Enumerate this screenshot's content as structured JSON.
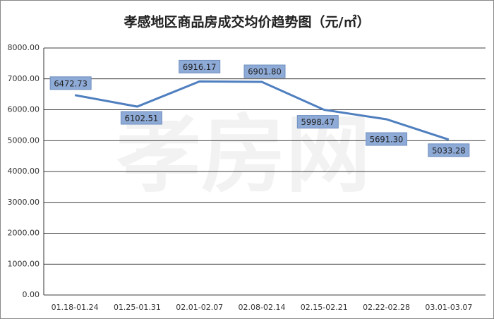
{
  "chart_data": {
    "type": "line",
    "title": "孝感地区商品房成交均价趋势图（元/㎡）",
    "watermark": "孝房网",
    "categories": [
      "01.18-01.24",
      "01.25-01.31",
      "02.01-02.07",
      "02.08-02.14",
      "02.15-02.21",
      "02.22-02.28",
      "03.01-03.07"
    ],
    "series": [
      {
        "name": "成交均价",
        "color": "#4f7fbf",
        "values": [
          6472.73,
          6102.51,
          6916.17,
          6901.8,
          5998.47,
          5691.3,
          5033.28
        ],
        "value_labels": [
          "6472.73",
          "6102.51",
          "6916.17",
          "6901.80",
          "5998.47",
          "5691.30",
          "5033.28"
        ]
      }
    ],
    "ylim": [
      0,
      8000
    ],
    "yticks": [
      {
        "value": 0,
        "label": "0.00"
      },
      {
        "value": 1000,
        "label": "1000.00"
      },
      {
        "value": 2000,
        "label": "2000.00"
      },
      {
        "value": 3000,
        "label": "3000.00"
      },
      {
        "value": 4000,
        "label": "4000.00"
      },
      {
        "value": 5000,
        "label": "5000.00"
      },
      {
        "value": 6000,
        "label": "6000.00"
      },
      {
        "value": 7000,
        "label": "7000.00"
      },
      {
        "value": 8000,
        "label": "8000.00"
      }
    ],
    "grid": true
  }
}
